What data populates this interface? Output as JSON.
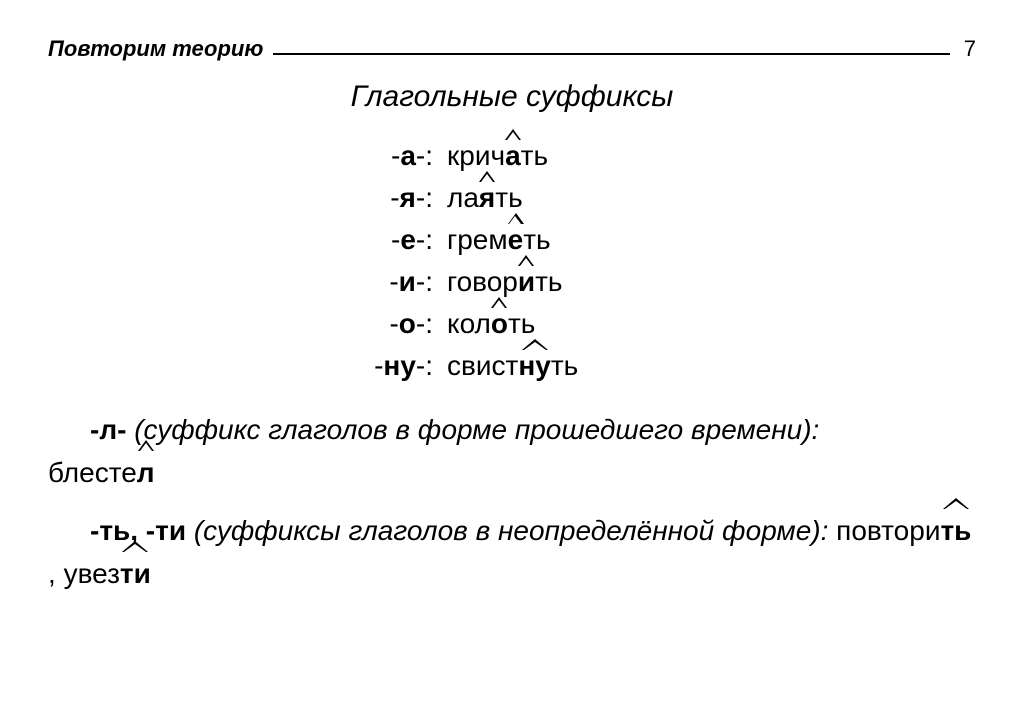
{
  "header": {
    "label": "Повторим теорию",
    "page": "7"
  },
  "title": "Глагольные суффиксы",
  "rows": [
    {
      "suffix": "а",
      "pre": "крич",
      "mark": "а",
      "post": "ть",
      "wide": false
    },
    {
      "suffix": "я",
      "pre": "ла",
      "mark": "я",
      "post": "ть",
      "wide": false
    },
    {
      "suffix": "е",
      "pre": "грем",
      "mark": "е",
      "post": "ть",
      "wide": false
    },
    {
      "suffix": "и",
      "pre": "говор",
      "mark": "и",
      "post": "ть",
      "wide": false
    },
    {
      "suffix": "о",
      "pre": "кол",
      "mark": "о",
      "post": "ть",
      "wide": false
    },
    {
      "suffix": "ну",
      "pre": "свист",
      "mark": "ну",
      "post": "ть",
      "wide": true
    }
  ],
  "p1": {
    "prefix": "-л-",
    "desc": " (суффикс глаголов в форме прошедшего времени): ",
    "word_pre": "блесте",
    "word_mark": "л"
  },
  "p2": {
    "prefix": "-ть, -ти",
    "desc": " (суффиксы глаголов в неопределённой форме): ",
    "w1_pre": "повтори",
    "w1_mark": "ть",
    "sep": ", ",
    "w2_pre": "увез",
    "w2_mark": "ти"
  }
}
